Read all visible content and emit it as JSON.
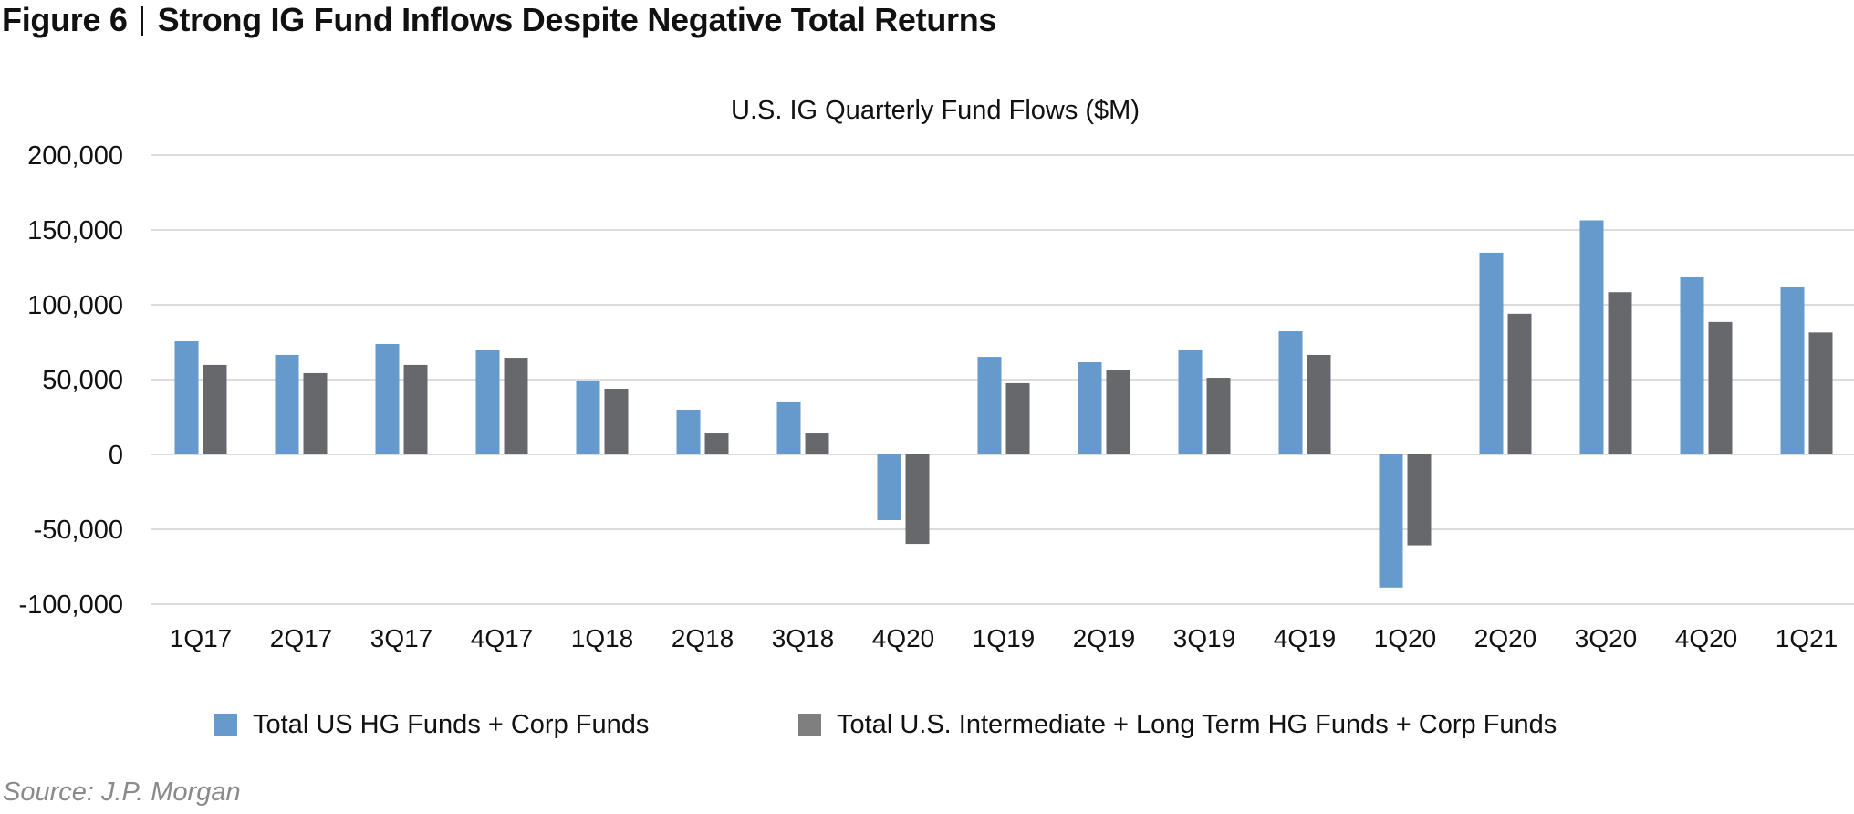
{
  "figure": {
    "label": "Figure 6",
    "title": "Strong IG Fund Inflows Despite Negative Total Returns"
  },
  "source": "Source: J.P. Morgan",
  "colors": {
    "series1": "#6699cc",
    "series2": "#67686b",
    "legend_series2": "#7f7f7f",
    "grid": "#dcdcdc",
    "text": "#111111",
    "source_text": "#8a8a8a"
  },
  "chart_data": {
    "type": "bar",
    "title": "U.S. IG Quarterly Fund Flows ($M)",
    "xlabel": "",
    "ylabel": "",
    "ylim": [
      -100000,
      200000
    ],
    "yticks": [
      200000,
      150000,
      100000,
      50000,
      0,
      -50000,
      -100000
    ],
    "ytick_labels": [
      "200,000",
      "150,000",
      "100,000",
      "50,000",
      "0",
      "-50,000",
      "-100,000"
    ],
    "grid": true,
    "legend_position": "bottom",
    "categories": [
      "1Q17",
      "2Q17",
      "3Q17",
      "4Q17",
      "1Q18",
      "2Q18",
      "3Q18",
      "4Q20",
      "1Q19",
      "2Q19",
      "3Q19",
      "4Q19",
      "1Q20",
      "2Q20",
      "3Q20",
      "4Q20",
      "1Q21"
    ],
    "series": [
      {
        "name": "Total US HG Funds + Corp Funds",
        "values": [
          75600,
          66500,
          73800,
          70100,
          49400,
          29900,
          35400,
          -43900,
          65200,
          61600,
          70100,
          82300,
          -88900,
          134800,
          156400,
          118900,
          111700
        ]
      },
      {
        "name": "Total U.S. Intermediate + Long Term HG Funds + Corp Funds",
        "values": [
          59800,
          54300,
          59800,
          64600,
          43900,
          14000,
          14000,
          -59800,
          47600,
          56100,
          51200,
          66500,
          -60700,
          94000,
          108400,
          88500,
          81500
        ]
      }
    ]
  }
}
